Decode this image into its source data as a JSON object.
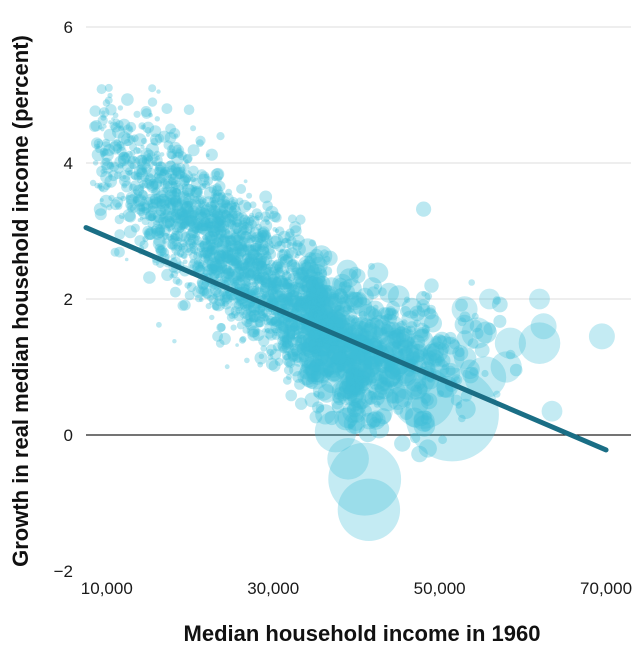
{
  "chart_data": {
    "type": "scatter",
    "title": "",
    "xlabel": "Median household income in 1960",
    "ylabel": "Growth in real median household income (percent)",
    "xlim": [
      7500,
      73000
    ],
    "ylim": [
      -2,
      6
    ],
    "x_ticks": [
      10000,
      30000,
      50000,
      70000
    ],
    "x_tick_labels": [
      "10,000",
      "30,000",
      "50,000",
      "70,000"
    ],
    "y_ticks": [
      -2,
      0,
      2,
      4,
      6
    ],
    "y_tick_labels": [
      "−2",
      "0",
      "2",
      "4",
      "6"
    ],
    "grid": "horizontal",
    "zero_line": true,
    "point_color": "#3bbcd6",
    "point_opacity": 0.35,
    "trend_color": "#1a6e85",
    "trend_line": {
      "x": [
        7500,
        70000
      ],
      "y": [
        3.05,
        -0.22
      ]
    },
    "cloud": {
      "point_count": 2600,
      "seed": 7,
      "center_x": 28000,
      "center_y": 2.0,
      "slope_per_10k": -0.5
    },
    "highlight_points": [
      {
        "x": 41500,
        "y": -1.1,
        "size": 6
      },
      {
        "x": 41000,
        "y": -0.65,
        "size": 7
      },
      {
        "x": 39000,
        "y": -0.35,
        "size": 4
      },
      {
        "x": 37500,
        "y": 0.05,
        "size": 4
      },
      {
        "x": 51500,
        "y": 0.3,
        "size": 9
      },
      {
        "x": 48000,
        "y": 0.55,
        "size": 6
      },
      {
        "x": 46500,
        "y": 0.9,
        "size": 5
      },
      {
        "x": 55500,
        "y": 0.85,
        "size": 4
      },
      {
        "x": 58000,
        "y": 1.0,
        "size": 3
      },
      {
        "x": 58500,
        "y": 1.35,
        "size": 3
      },
      {
        "x": 62000,
        "y": 1.35,
        "size": 4
      },
      {
        "x": 62500,
        "y": 1.6,
        "size": 2.5
      },
      {
        "x": 62000,
        "y": 2.0,
        "size": 2
      },
      {
        "x": 63500,
        "y": 0.35,
        "size": 2
      },
      {
        "x": 69500,
        "y": 1.45,
        "size": 2.5
      },
      {
        "x": 56000,
        "y": 2.0,
        "size": 2
      },
      {
        "x": 54500,
        "y": 1.5,
        "size": 3
      },
      {
        "x": 45000,
        "y": 1.2,
        "size": 4
      },
      {
        "x": 50500,
        "y": 1.15,
        "size": 4
      },
      {
        "x": 42500,
        "y": 0.35,
        "size": 3
      },
      {
        "x": 53000,
        "y": 1.85,
        "size": 2.5
      },
      {
        "x": 44000,
        "y": 1.55,
        "size": 3
      },
      {
        "x": 35000,
        "y": 0.9,
        "size": 3
      }
    ]
  }
}
